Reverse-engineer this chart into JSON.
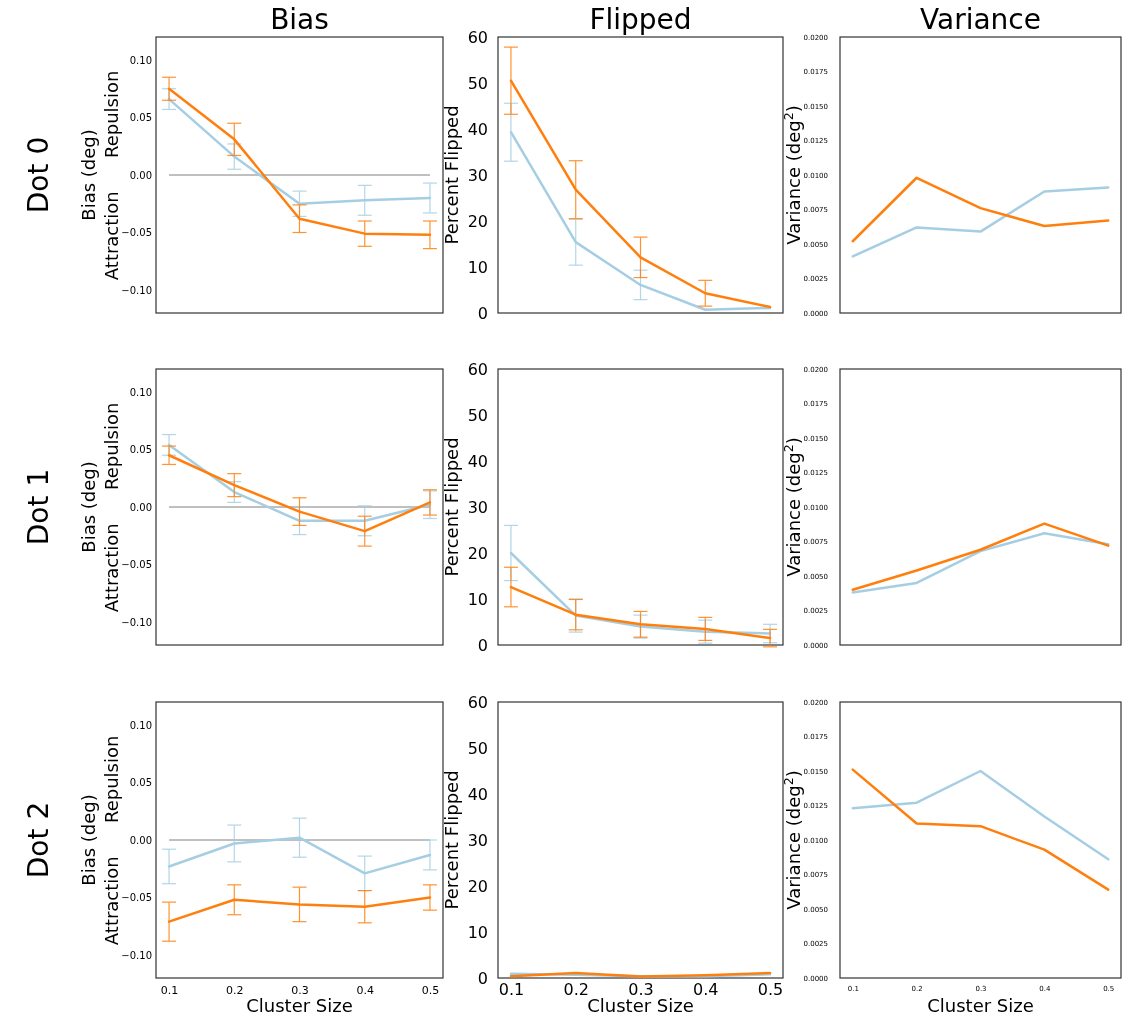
{
  "chart_data": [
    {
      "type": "line",
      "title": "Bias",
      "ylabel": "Bias (deg)",
      "annotations": [
        "Dot 0",
        "Repulsion",
        "Attraction"
      ],
      "x": [
        0.1,
        0.2,
        0.3,
        0.4,
        0.5
      ],
      "xlim": [
        0.08,
        0.52
      ],
      "ylim": [
        -0.12,
        0.12
      ],
      "yticks": [
        {
          "value": -0.1,
          "label": "−0.10"
        },
        {
          "value": -0.05,
          "label": "−0.05"
        },
        {
          "value": 0,
          "label": "0.00"
        },
        {
          "value": 0.05,
          "label": "0.05"
        },
        {
          "value": 0.1,
          "label": "0.10"
        }
      ],
      "tick_labels": "y",
      "ref_lines": [
        {
          "axis": "y",
          "value": 0,
          "color": "#808080"
        }
      ],
      "series": [
        {
          "color": "#a6cee3",
          "values": [
            0.066,
            0.016,
            -0.025,
            -0.022,
            -0.02
          ],
          "errors": [
            0.009,
            0.011,
            0.011,
            0.013,
            0.013
          ]
        },
        {
          "color": "#ff7f0e",
          "values": [
            0.075,
            0.031,
            -0.038,
            -0.051,
            -0.052
          ],
          "errors": [
            0.01,
            0.014,
            0.012,
            0.011,
            0.012
          ]
        }
      ]
    },
    {
      "type": "line",
      "title": "Flipped",
      "ylabel": "Percent Flipped",
      "x": [
        0.1,
        0.2,
        0.3,
        0.4,
        0.5
      ],
      "xlim": [
        0.08,
        0.52
      ],
      "ylim": [
        0,
        60
      ],
      "yticks": [
        0,
        10,
        20,
        30,
        40,
        50,
        60
      ],
      "tick_labels": "y",
      "series": [
        {
          "color": "#a6cee3",
          "values": [
            39.3,
            15.4,
            6.1,
            0.7,
            1.1
          ],
          "errors": [
            6.3,
            5.0,
            3.2,
            null,
            null
          ]
        },
        {
          "color": "#ff7f0e",
          "values": [
            50.5,
            26.8,
            12.1,
            4.3,
            1.3
          ],
          "errors": [
            7.3,
            6.3,
            4.4,
            2.8,
            null
          ]
        }
      ]
    },
    {
      "type": "line",
      "title": "Variance",
      "ylabel": "Variance (deg$^{2}$)",
      "x": [
        0.1,
        0.2,
        0.3,
        0.4,
        0.5
      ],
      "xlim": [
        0.08,
        0.52
      ],
      "ylim": [
        0,
        0.02
      ],
      "yticks": [
        {
          "value": 0,
          "label": "0.0000"
        },
        {
          "value": 0.0025,
          "label": "0.0025"
        },
        {
          "value": 0.005,
          "label": "0.0050"
        },
        {
          "value": 0.0075,
          "label": "0.0075"
        },
        {
          "value": 0.01,
          "label": "0.0100"
        },
        {
          "value": 0.0125,
          "label": "0.0125"
        },
        {
          "value": 0.015,
          "label": "0.0150"
        },
        {
          "value": 0.0175,
          "label": "0.0175"
        },
        {
          "value": 0.02,
          "label": "0.0200"
        }
      ],
      "tick_labels": "y",
      "series": [
        {
          "color": "#a6cee3",
          "values": [
            0.0041,
            0.0062,
            0.0059,
            0.0088,
            0.0091
          ]
        },
        {
          "color": "#ff7f0e",
          "values": [
            0.0052,
            0.0098,
            0.0076,
            0.0063,
            0.0067
          ]
        }
      ]
    },
    {
      "type": "line",
      "ylabel": "Bias (deg)",
      "annotations": [
        "Dot 1",
        "Repulsion",
        "Attraction"
      ],
      "x": [
        0.1,
        0.2,
        0.3,
        0.4,
        0.5
      ],
      "xlim": [
        0.08,
        0.52
      ],
      "ylim": [
        -0.12,
        0.12
      ],
      "yticks": [
        {
          "value": -0.1,
          "label": "−0.10"
        },
        {
          "value": -0.05,
          "label": "−0.05"
        },
        {
          "value": 0,
          "label": "0.00"
        },
        {
          "value": 0.05,
          "label": "0.05"
        },
        {
          "value": 0.1,
          "label": "0.10"
        }
      ],
      "tick_labels": "y",
      "ref_lines": [
        {
          "axis": "y",
          "value": 0,
          "color": "#808080"
        }
      ],
      "series": [
        {
          "color": "#a6cee3",
          "values": [
            0.054,
            0.013,
            -0.012,
            -0.012,
            0.002
          ],
          "errors": [
            0.009,
            0.009,
            0.012,
            0.013,
            0.012
          ]
        },
        {
          "color": "#ff7f0e",
          "values": [
            0.045,
            0.019,
            -0.004,
            -0.021,
            0.004
          ],
          "errors": [
            0.008,
            0.01,
            0.012,
            0.013,
            0.011
          ]
        }
      ]
    },
    {
      "type": "line",
      "ylabel": "Percent Flipped",
      "x": [
        0.1,
        0.2,
        0.3,
        0.4,
        0.5
      ],
      "xlim": [
        0.08,
        0.52
      ],
      "ylim": [
        0,
        60
      ],
      "yticks": [
        0,
        10,
        20,
        30,
        40,
        50,
        60
      ],
      "tick_labels": "y",
      "series": [
        {
          "color": "#a6cee3",
          "values": [
            20.0,
            6.4,
            4.0,
            2.9,
            2.5
          ],
          "errors": [
            6.0,
            3.6,
            2.5,
            2.5,
            2.0
          ]
        },
        {
          "color": "#ff7f0e",
          "values": [
            12.6,
            6.6,
            4.5,
            3.5,
            1.5
          ],
          "errors": [
            4.3,
            3.3,
            2.8,
            2.5,
            1.9
          ]
        }
      ]
    },
    {
      "type": "line",
      "ylabel": "Variance (deg$^{2}$)",
      "x": [
        0.1,
        0.2,
        0.3,
        0.4,
        0.5
      ],
      "xlim": [
        0.08,
        0.52
      ],
      "ylim": [
        0,
        0.02
      ],
      "yticks": [
        {
          "value": 0,
          "label": "0.0000"
        },
        {
          "value": 0.0025,
          "label": "0.0025"
        },
        {
          "value": 0.005,
          "label": "0.0050"
        },
        {
          "value": 0.0075,
          "label": "0.0075"
        },
        {
          "value": 0.01,
          "label": "0.0100"
        },
        {
          "value": 0.0125,
          "label": "0.0125"
        },
        {
          "value": 0.015,
          "label": "0.0150"
        },
        {
          "value": 0.0175,
          "label": "0.0175"
        },
        {
          "value": 0.02,
          "label": "0.0200"
        }
      ],
      "tick_labels": "y",
      "series": [
        {
          "color": "#a6cee3",
          "values": [
            0.0038,
            0.0045,
            0.0068,
            0.0081,
            0.0073
          ]
        },
        {
          "color": "#ff7f0e",
          "values": [
            0.004,
            0.0054,
            0.0069,
            0.0088,
            0.0072
          ]
        }
      ]
    },
    {
      "type": "line",
      "ylabel": "Bias (deg)",
      "xlabel": "Cluster Size",
      "annotations": [
        "Dot 2",
        "Repulsion",
        "Attraction"
      ],
      "x": [
        0.1,
        0.2,
        0.3,
        0.4,
        0.5
      ],
      "xlim": [
        0.08,
        0.52
      ],
      "xticks": [
        0.1,
        0.2,
        0.3,
        0.4,
        0.5
      ],
      "ylim": [
        -0.12,
        0.12
      ],
      "yticks": [
        {
          "value": -0.1,
          "label": "−0.10"
        },
        {
          "value": -0.05,
          "label": "−0.05"
        },
        {
          "value": 0,
          "label": "0.00"
        },
        {
          "value": 0.05,
          "label": "0.05"
        },
        {
          "value": 0.1,
          "label": "0.10"
        }
      ],
      "ref_lines": [
        {
          "axis": "y",
          "value": 0,
          "color": "#808080"
        }
      ],
      "series": [
        {
          "color": "#a6cee3",
          "values": [
            -0.023,
            -0.003,
            0.002,
            -0.029,
            -0.013
          ],
          "errors": [
            0.015,
            0.016,
            0.017,
            0.015,
            0.013
          ]
        },
        {
          "color": "#ff7f0e",
          "values": [
            -0.071,
            -0.052,
            -0.056,
            -0.058,
            -0.05
          ],
          "errors": [
            0.017,
            0.013,
            0.015,
            0.014,
            0.011
          ]
        }
      ]
    },
    {
      "type": "line",
      "ylabel": "Percent Flipped",
      "xlabel": "Cluster Size",
      "x": [
        0.1,
        0.2,
        0.3,
        0.4,
        0.5
      ],
      "xlim": [
        0.08,
        0.52
      ],
      "xticks": [
        0.1,
        0.2,
        0.3,
        0.4,
        0.5
      ],
      "ylim": [
        0,
        60
      ],
      "yticks": [
        0,
        10,
        20,
        30,
        40,
        50,
        60
      ],
      "series": [
        {
          "color": "#a6cee3",
          "values": [
            0.9,
            0.7,
            0.4,
            0.4,
            0.8
          ]
        },
        {
          "color": "#ff7f0e",
          "values": [
            0.4,
            1.1,
            0.3,
            0.6,
            1.1
          ]
        }
      ]
    },
    {
      "type": "line",
      "ylabel": "Variance (deg$^{2}$)",
      "xlabel": "Cluster Size",
      "x": [
        0.1,
        0.2,
        0.3,
        0.4,
        0.5
      ],
      "xlim": [
        0.08,
        0.52
      ],
      "xticks": [
        0.1,
        0.2,
        0.3,
        0.4,
        0.5
      ],
      "ylim": [
        0,
        0.02
      ],
      "yticks": [
        {
          "value": 0,
          "label": "0.0000"
        },
        {
          "value": 0.0025,
          "label": "0.0025"
        },
        {
          "value": 0.005,
          "label": "0.0050"
        },
        {
          "value": 0.0075,
          "label": "0.0075"
        },
        {
          "value": 0.01,
          "label": "0.0100"
        },
        {
          "value": 0.0125,
          "label": "0.0125"
        },
        {
          "value": 0.015,
          "label": "0.0150"
        },
        {
          "value": 0.0175,
          "label": "0.0175"
        },
        {
          "value": 0.02,
          "label": "0.0200"
        }
      ],
      "series": [
        {
          "color": "#a6cee3",
          "values": [
            0.0123,
            0.0127,
            0.015,
            0.0117,
            0.0086
          ]
        },
        {
          "color": "#ff7f0e",
          "values": [
            0.0151,
            0.0112,
            0.011,
            0.0093,
            0.0064
          ]
        }
      ]
    }
  ]
}
